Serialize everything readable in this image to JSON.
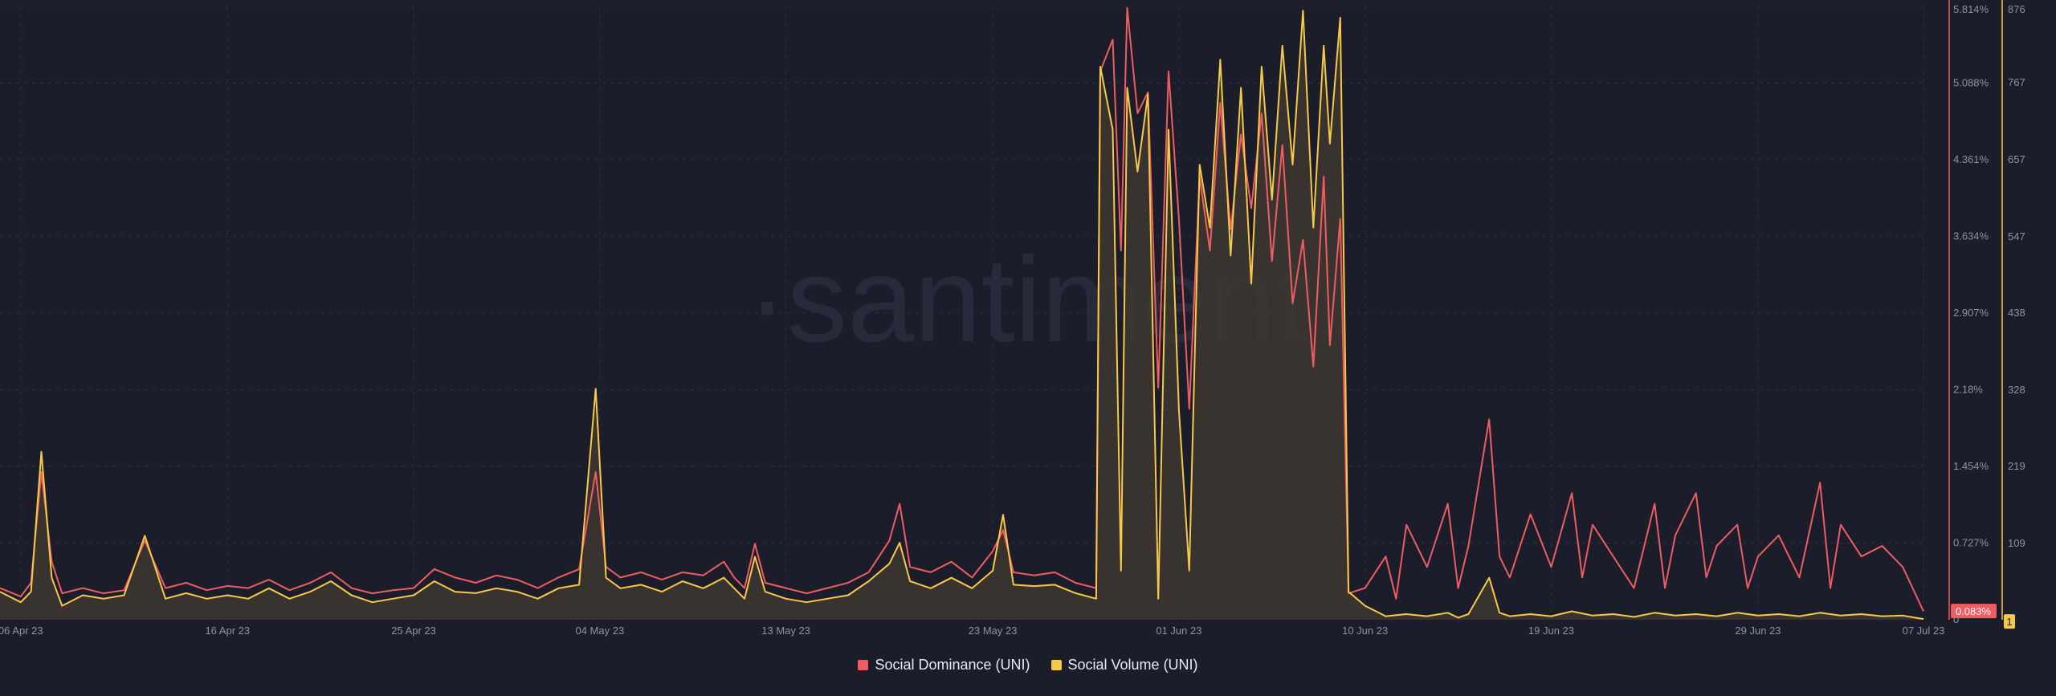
{
  "watermark": "·santiment",
  "chart_data": {
    "type": "line",
    "x_start": "2023-04-05",
    "x_end": "2023-07-07",
    "xticks": [
      "06 Apr 23",
      "16 Apr 23",
      "25 Apr 23",
      "04 May 23",
      "13 May 23",
      "23 May 23",
      "01 Jun 23",
      "10 Jun 23",
      "19 Jun 23",
      "29 Jun 23",
      "07 Jul 23"
    ],
    "xtick_days": [
      1,
      11,
      20,
      29,
      38,
      48,
      57,
      66,
      75,
      85,
      93
    ],
    "y_left": {
      "label": "Social Dominance (UNI)",
      "unit": "%",
      "ylim": [
        0,
        5.814
      ],
      "ticks": [
        "5.814%",
        "5.088%",
        "4.361%",
        "3.634%",
        "2.907%",
        "2.18%",
        "1.454%",
        "0.727%",
        "0"
      ],
      "tick_values": [
        5.814,
        5.088,
        4.361,
        3.634,
        2.907,
        2.18,
        1.454,
        0.727,
        0
      ]
    },
    "y_right": {
      "label": "Social Volume (UNI)",
      "ylim": [
        0,
        876
      ],
      "ticks": [
        "876",
        "767",
        "657",
        "547",
        "438",
        "328",
        "219",
        "109",
        "0"
      ],
      "tick_values": [
        876,
        767,
        657,
        547,
        438,
        328,
        219,
        109,
        0
      ]
    },
    "last_values": {
      "dominance": "0.083%",
      "volume": "1"
    },
    "series": [
      {
        "name": "Social Dominance (UNI)",
        "color": "#ef5c62",
        "axis": "left",
        "points": [
          [
            0,
            0.3
          ],
          [
            1,
            0.22
          ],
          [
            1.5,
            0.35
          ],
          [
            2,
            1.4
          ],
          [
            2.5,
            0.55
          ],
          [
            3,
            0.25
          ],
          [
            4,
            0.3
          ],
          [
            5,
            0.25
          ],
          [
            6,
            0.28
          ],
          [
            7,
            0.75
          ],
          [
            8,
            0.3
          ],
          [
            9,
            0.35
          ],
          [
            10,
            0.28
          ],
          [
            11,
            0.32
          ],
          [
            12,
            0.3
          ],
          [
            13,
            0.38
          ],
          [
            14,
            0.28
          ],
          [
            15,
            0.35
          ],
          [
            16,
            0.45
          ],
          [
            17,
            0.3
          ],
          [
            18,
            0.25
          ],
          [
            19,
            0.28
          ],
          [
            20,
            0.3
          ],
          [
            21,
            0.48
          ],
          [
            22,
            0.4
          ],
          [
            23,
            0.35
          ],
          [
            24,
            0.42
          ],
          [
            25,
            0.38
          ],
          [
            26,
            0.3
          ],
          [
            27,
            0.4
          ],
          [
            28,
            0.48
          ],
          [
            28.8,
            1.4
          ],
          [
            29.3,
            0.5
          ],
          [
            30,
            0.4
          ],
          [
            31,
            0.45
          ],
          [
            32,
            0.38
          ],
          [
            33,
            0.45
          ],
          [
            34,
            0.42
          ],
          [
            35,
            0.55
          ],
          [
            35.5,
            0.4
          ],
          [
            36,
            0.3
          ],
          [
            36.5,
            0.72
          ],
          [
            37,
            0.35
          ],
          [
            38,
            0.3
          ],
          [
            39,
            0.25
          ],
          [
            40,
            0.3
          ],
          [
            41,
            0.35
          ],
          [
            42,
            0.45
          ],
          [
            43,
            0.75
          ],
          [
            43.5,
            1.1
          ],
          [
            44,
            0.5
          ],
          [
            45,
            0.45
          ],
          [
            46,
            0.55
          ],
          [
            47,
            0.4
          ],
          [
            48,
            0.65
          ],
          [
            48.5,
            0.85
          ],
          [
            49,
            0.45
          ],
          [
            50,
            0.42
          ],
          [
            51,
            0.45
          ],
          [
            52,
            0.35
          ],
          [
            53,
            0.3
          ],
          [
            53.2,
            5.2
          ],
          [
            53.8,
            5.5
          ],
          [
            54.2,
            3.5
          ],
          [
            54.5,
            5.8
          ],
          [
            55,
            4.8
          ],
          [
            55.5,
            5.0
          ],
          [
            56,
            2.2
          ],
          [
            56.5,
            5.2
          ],
          [
            57,
            3.8
          ],
          [
            57.5,
            2.0
          ],
          [
            58,
            4.2
          ],
          [
            58.5,
            3.5
          ],
          [
            59,
            4.9
          ],
          [
            59.5,
            3.7
          ],
          [
            60,
            4.6
          ],
          [
            60.5,
            3.9
          ],
          [
            61,
            4.8
          ],
          [
            61.5,
            3.4
          ],
          [
            62,
            4.5
          ],
          [
            62.5,
            3.0
          ],
          [
            63,
            3.6
          ],
          [
            63.5,
            2.4
          ],
          [
            64,
            4.2
          ],
          [
            64.3,
            2.6
          ],
          [
            64.8,
            3.8
          ],
          [
            65.2,
            0.25
          ],
          [
            66,
            0.3
          ],
          [
            67,
            0.6
          ],
          [
            67.5,
            0.2
          ],
          [
            68,
            0.9
          ],
          [
            69,
            0.5
          ],
          [
            70,
            1.1
          ],
          [
            70.5,
            0.3
          ],
          [
            71,
            0.7
          ],
          [
            72,
            1.9
          ],
          [
            72.5,
            0.6
          ],
          [
            73,
            0.4
          ],
          [
            74,
            1.0
          ],
          [
            75,
            0.5
          ],
          [
            76,
            1.2
          ],
          [
            76.5,
            0.4
          ],
          [
            77,
            0.9
          ],
          [
            78,
            0.6
          ],
          [
            79,
            0.3
          ],
          [
            80,
            1.1
          ],
          [
            80.5,
            0.3
          ],
          [
            81,
            0.8
          ],
          [
            82,
            1.2
          ],
          [
            82.5,
            0.4
          ],
          [
            83,
            0.7
          ],
          [
            84,
            0.9
          ],
          [
            84.5,
            0.3
          ],
          [
            85,
            0.6
          ],
          [
            86,
            0.8
          ],
          [
            87,
            0.4
          ],
          [
            88,
            1.3
          ],
          [
            88.5,
            0.3
          ],
          [
            89,
            0.9
          ],
          [
            90,
            0.6
          ],
          [
            91,
            0.7
          ],
          [
            92,
            0.5
          ],
          [
            93,
            0.08
          ]
        ]
      },
      {
        "name": "Social Volume (UNI)",
        "color": "#f7c948",
        "axis": "right",
        "fill": "#3d3730",
        "points": [
          [
            0,
            40
          ],
          [
            1,
            25
          ],
          [
            1.5,
            40
          ],
          [
            2,
            240
          ],
          [
            2.5,
            60
          ],
          [
            3,
            20
          ],
          [
            4,
            35
          ],
          [
            5,
            30
          ],
          [
            6,
            35
          ],
          [
            7,
            120
          ],
          [
            8,
            30
          ],
          [
            9,
            38
          ],
          [
            10,
            30
          ],
          [
            11,
            35
          ],
          [
            12,
            30
          ],
          [
            13,
            45
          ],
          [
            14,
            30
          ],
          [
            15,
            40
          ],
          [
            16,
            55
          ],
          [
            17,
            35
          ],
          [
            18,
            25
          ],
          [
            19,
            30
          ],
          [
            20,
            35
          ],
          [
            21,
            55
          ],
          [
            22,
            40
          ],
          [
            23,
            38
          ],
          [
            24,
            45
          ],
          [
            25,
            40
          ],
          [
            26,
            30
          ],
          [
            27,
            45
          ],
          [
            28,
            50
          ],
          [
            28.8,
            330
          ],
          [
            29.3,
            60
          ],
          [
            30,
            45
          ],
          [
            31,
            50
          ],
          [
            32,
            40
          ],
          [
            33,
            55
          ],
          [
            34,
            45
          ],
          [
            35,
            60
          ],
          [
            35.5,
            45
          ],
          [
            36,
            30
          ],
          [
            36.5,
            90
          ],
          [
            37,
            40
          ],
          [
            38,
            30
          ],
          [
            39,
            25
          ],
          [
            40,
            30
          ],
          [
            41,
            35
          ],
          [
            42,
            55
          ],
          [
            43,
            80
          ],
          [
            43.5,
            110
          ],
          [
            44,
            55
          ],
          [
            45,
            45
          ],
          [
            46,
            60
          ],
          [
            47,
            45
          ],
          [
            48,
            70
          ],
          [
            48.5,
            150
          ],
          [
            49,
            50
          ],
          [
            50,
            48
          ],
          [
            51,
            50
          ],
          [
            52,
            38
          ],
          [
            53,
            30
          ],
          [
            53.2,
            790
          ],
          [
            53.8,
            700
          ],
          [
            54.2,
            70
          ],
          [
            54.5,
            760
          ],
          [
            55,
            640
          ],
          [
            55.5,
            750
          ],
          [
            56,
            30
          ],
          [
            56.5,
            700
          ],
          [
            57,
            300
          ],
          [
            57.5,
            70
          ],
          [
            58,
            650
          ],
          [
            58.5,
            560
          ],
          [
            59,
            800
          ],
          [
            59.5,
            520
          ],
          [
            60,
            760
          ],
          [
            60.5,
            480
          ],
          [
            61,
            790
          ],
          [
            61.5,
            600
          ],
          [
            62,
            820
          ],
          [
            62.5,
            650
          ],
          [
            63,
            870
          ],
          [
            63.5,
            560
          ],
          [
            64,
            820
          ],
          [
            64.3,
            680
          ],
          [
            64.8,
            860
          ],
          [
            65.2,
            40
          ],
          [
            66,
            20
          ],
          [
            67,
            5
          ],
          [
            68,
            8
          ],
          [
            69,
            5
          ],
          [
            70,
            10
          ],
          [
            70.5,
            3
          ],
          [
            71,
            8
          ],
          [
            72,
            60
          ],
          [
            72.5,
            10
          ],
          [
            73,
            5
          ],
          [
            74,
            8
          ],
          [
            75,
            5
          ],
          [
            76,
            12
          ],
          [
            77,
            6
          ],
          [
            78,
            8
          ],
          [
            79,
            4
          ],
          [
            80,
            10
          ],
          [
            81,
            6
          ],
          [
            82,
            8
          ],
          [
            83,
            5
          ],
          [
            84,
            10
          ],
          [
            85,
            6
          ],
          [
            86,
            8
          ],
          [
            87,
            5
          ],
          [
            88,
            10
          ],
          [
            89,
            6
          ],
          [
            90,
            8
          ],
          [
            91,
            5
          ],
          [
            92,
            6
          ],
          [
            93,
            1
          ]
        ]
      }
    ]
  }
}
